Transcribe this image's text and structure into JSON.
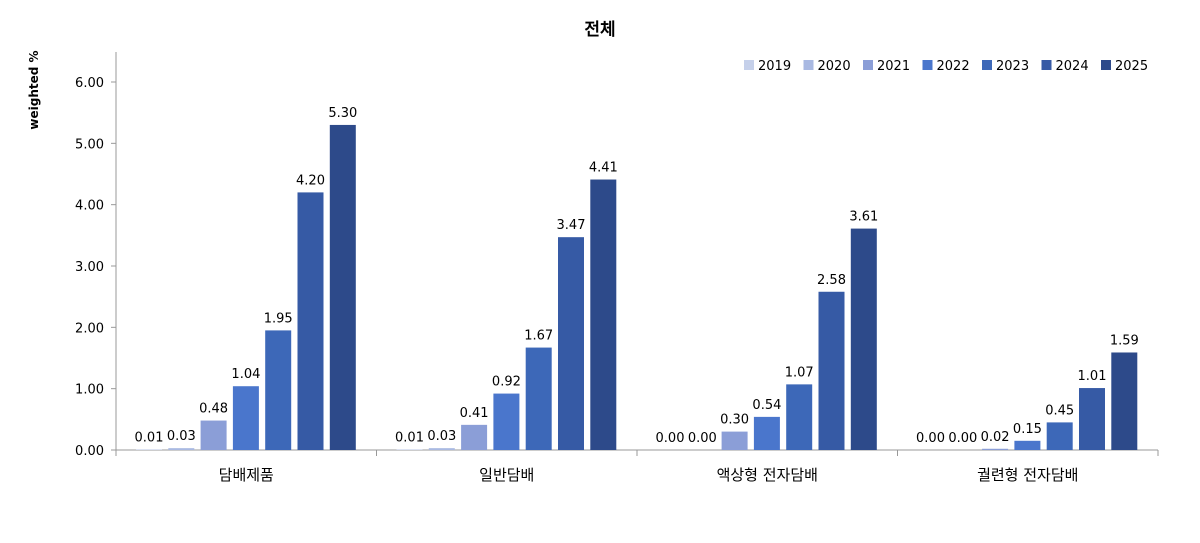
{
  "chart_data": {
    "type": "bar",
    "title": "전체",
    "xlabel": "",
    "ylabel": "weighted %",
    "ylim": [
      0,
      6
    ],
    "yticks": [
      "0.00",
      "1.00",
      "2.00",
      "3.00",
      "4.00",
      "5.00",
      "6.00"
    ],
    "grid": false,
    "legend_position": "top-right",
    "categories": [
      "담배제품",
      "일반담배",
      "액상형 전자담배",
      "궐련형 전자담배"
    ],
    "series": [
      {
        "name": "2019",
        "color": "#c5d0ea",
        "values": [
          0.01,
          0.01,
          0.0,
          0.0
        ],
        "labels": [
          "0.01",
          "0.01",
          "0.00",
          "0.00"
        ]
      },
      {
        "name": "2020",
        "color": "#a9b9e2",
        "values": [
          0.03,
          0.03,
          0.0,
          0.0
        ],
        "labels": [
          "0.03",
          "0.03",
          "0.00",
          "0.00"
        ]
      },
      {
        "name": "2021",
        "color": "#8b9ed7",
        "values": [
          0.48,
          0.41,
          0.3,
          0.02
        ],
        "labels": [
          "0.48",
          "0.41",
          "0.30",
          "0.02"
        ]
      },
      {
        "name": "2022",
        "color": "#4a76cc",
        "values": [
          1.04,
          0.92,
          0.54,
          0.15
        ],
        "labels": [
          "1.04",
          "0.92",
          "0.54",
          "0.15"
        ]
      },
      {
        "name": "2023",
        "color": "#3d68b8",
        "values": [
          1.95,
          1.67,
          1.07,
          0.45
        ],
        "labels": [
          "1.95",
          "1.67",
          "1.07",
          "0.45"
        ]
      },
      {
        "name": "2024",
        "color": "#365aa5",
        "values": [
          4.2,
          3.47,
          2.58,
          1.01
        ],
        "labels": [
          "4.20",
          "3.47",
          "2.58",
          "1.01"
        ]
      },
      {
        "name": "2025",
        "color": "#2d4a8a",
        "values": [
          5.3,
          4.41,
          3.61,
          1.59
        ],
        "labels": [
          "5.30",
          "4.41",
          "3.61",
          "1.59"
        ]
      }
    ]
  }
}
